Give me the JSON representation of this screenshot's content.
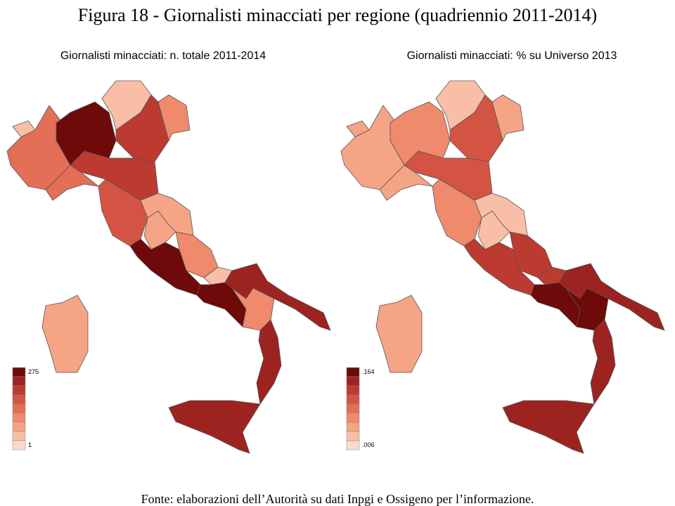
{
  "title": "Figura 18 - Giornalisti minacciati per regione (quadriennio 2011-2014)",
  "maps": [
    {
      "subtitle": "Giornalisti minacciati: n. totale 2011-2014",
      "legend": {
        "max_label": "275",
        "min_label": "1"
      }
    },
    {
      "subtitle": "Giornalisti minacciati: % su Universo 2013",
      "legend": {
        "max_label": ".164",
        "min_label": ".006"
      }
    }
  ],
  "source": "Fonte: elaborazioni dell’Autorità su dati Inpgi e Ossigeno per l’informazione."
}
